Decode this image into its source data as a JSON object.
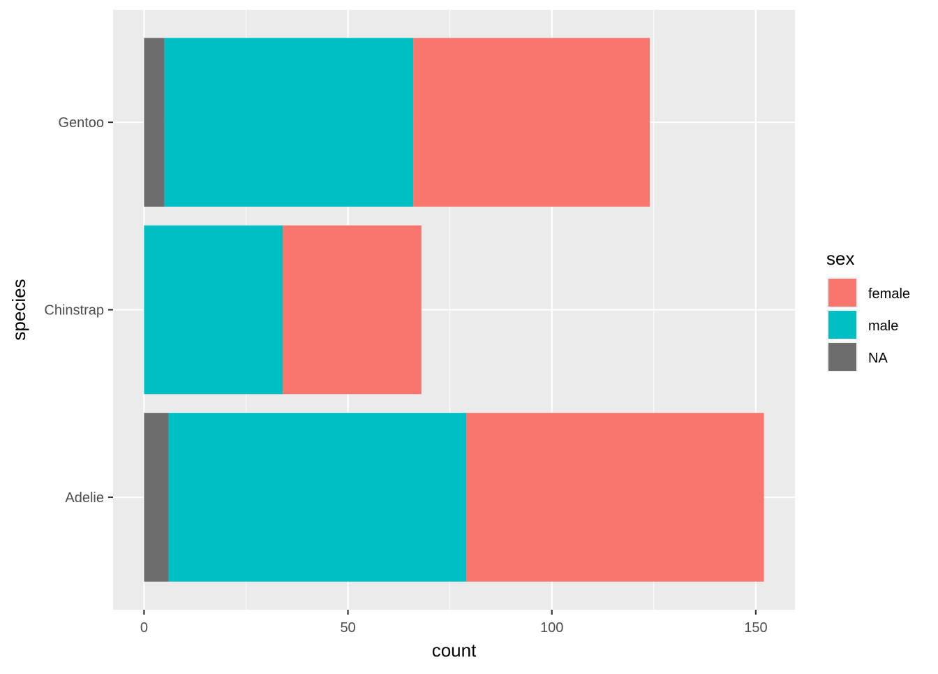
{
  "chart_data": {
    "type": "bar",
    "orientation": "horizontal",
    "stacked": true,
    "categories": [
      "Adelie",
      "Chinstrap",
      "Gentoo"
    ],
    "series": [
      {
        "name": "female",
        "color": "#F8766D",
        "values": [
          73,
          34,
          58
        ]
      },
      {
        "name": "male",
        "color": "#00BFC4",
        "values": [
          73,
          34,
          61
        ]
      },
      {
        "name": "NA",
        "color": "#6D6D6D",
        "values": [
          6,
          0,
          5
        ]
      }
    ],
    "stack_order": [
      "NA",
      "male",
      "female"
    ],
    "xlabel": "count",
    "ylabel": "species",
    "xlim": [
      -7.6,
      159.6
    ],
    "x_ticks": [
      0,
      50,
      100,
      150
    ],
    "x_tick_labels": [
      "0",
      "50",
      "100",
      "150"
    ],
    "grid": true,
    "panel_background": "#EBEBEB",
    "grid_color": "#FFFFFF",
    "legend": {
      "title": "sex",
      "position": "right",
      "items": [
        "female",
        "male",
        "NA"
      ]
    }
  }
}
